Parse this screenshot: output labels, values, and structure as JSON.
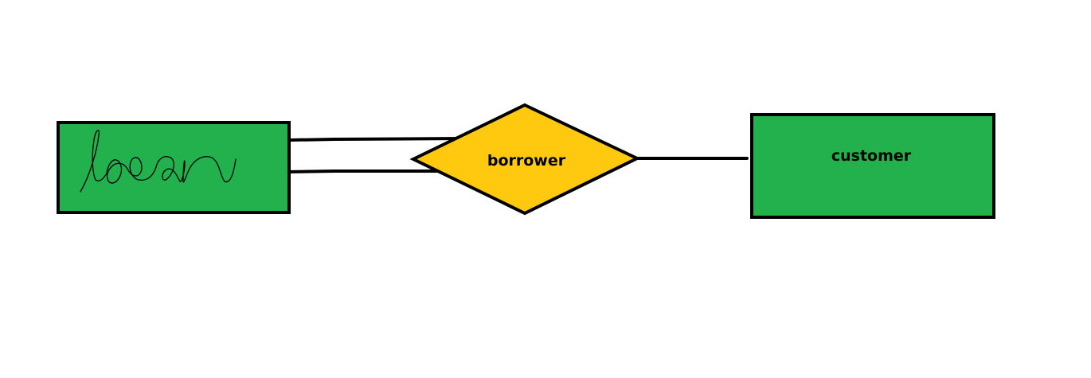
{
  "diagram": {
    "entities": [
      {
        "id": "loan",
        "label": "loan",
        "style": "handwritten"
      },
      {
        "id": "customer",
        "label": "customer"
      }
    ],
    "relationships": [
      {
        "id": "borrower",
        "label": "borrower"
      }
    ],
    "connections": [
      {
        "from": "loan",
        "to": "borrower",
        "line": "double"
      },
      {
        "from": "borrower",
        "to": "customer",
        "line": "single"
      }
    ]
  },
  "colors": {
    "entity_fill": "#23b14d",
    "relationship_fill": "#fec90f",
    "stroke": "#000000",
    "background": "#ffffff"
  }
}
